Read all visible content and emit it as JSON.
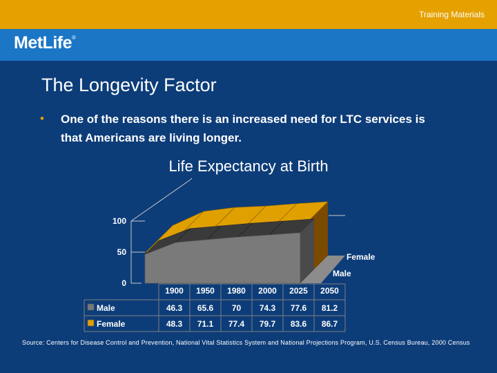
{
  "header": {
    "label": "Training Materials",
    "logo": "MetLife",
    "logo_mark": "®"
  },
  "slide": {
    "title": "The Longevity Factor",
    "bullet": "One of the reasons there is an increased need for LTC services is that Americans are living longer.",
    "source": "Source: Centers for Disease Control and Prevention, National Vital Statistics System and National Projections Program, U.S. Census Bureau, 2000 Census"
  },
  "colors": {
    "topbar": "#e5a100",
    "brandbar": "#1b76c6",
    "background": "#0d3d79",
    "male": "#7a7a7a",
    "female": "#e0a000"
  },
  "chart_data": {
    "type": "area",
    "title": "Life Expectancy at Birth",
    "categories": [
      "1900",
      "1950",
      "1980",
      "2000",
      "2025",
      "2050"
    ],
    "yticks": [
      "0",
      "50",
      "100"
    ],
    "ylim": [
      0,
      100
    ],
    "series": [
      {
        "name": "Male",
        "values": [
          46.3,
          65.6,
          70,
          74.3,
          77.6,
          81.2
        ]
      },
      {
        "name": "Female",
        "values": [
          48.3,
          71.1,
          77.4,
          79.7,
          83.6,
          86.7
        ]
      }
    ],
    "table": {
      "rows": [
        {
          "label": "Male",
          "values": [
            "46.3",
            "65.6",
            "70",
            "74.3",
            "77.6",
            "81.2"
          ]
        },
        {
          "label": "Female",
          "values": [
            "48.3",
            "71.1",
            "77.4",
            "79.7",
            "83.6",
            "86.7"
          ]
        }
      ]
    }
  }
}
